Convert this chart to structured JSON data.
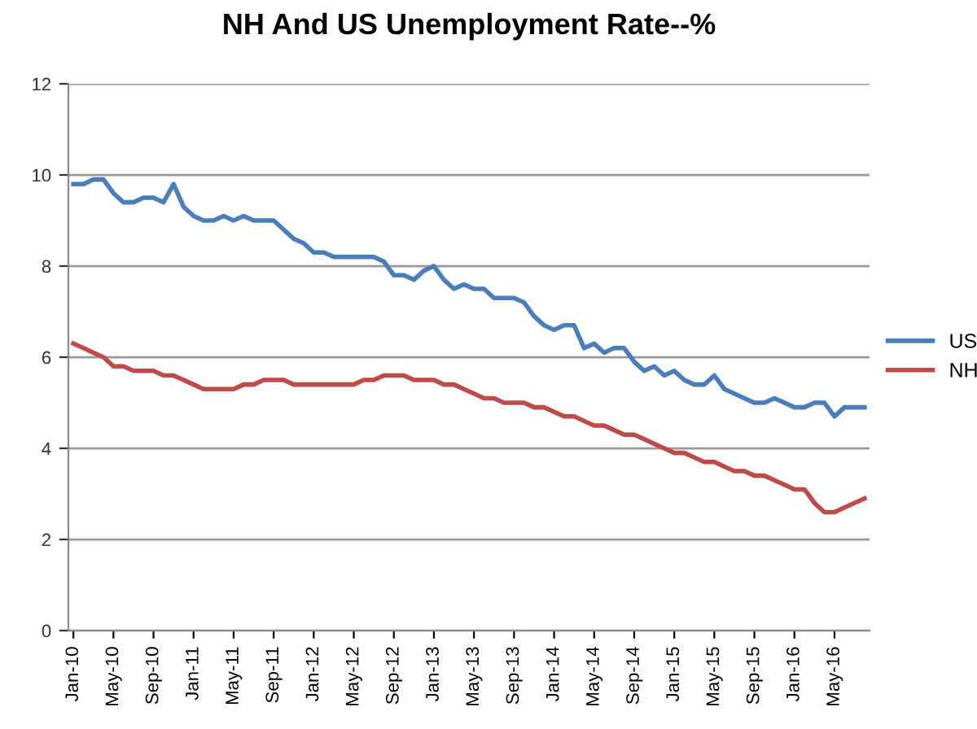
{
  "chart_data": {
    "type": "line",
    "title": "NH And US Unemployment Rate--%",
    "categories": [
      "Jan-10",
      null,
      null,
      null,
      "May-10",
      null,
      null,
      null,
      "Sep-10",
      null,
      null,
      null,
      "Jan-11",
      null,
      null,
      null,
      "May-11",
      null,
      null,
      null,
      "Sep-11",
      null,
      null,
      null,
      "Jan-12",
      null,
      null,
      null,
      "May-12",
      null,
      null,
      null,
      "Sep-12",
      null,
      null,
      null,
      "Jan-13",
      null,
      null,
      null,
      "May-13",
      null,
      null,
      null,
      "Sep-13",
      null,
      null,
      null,
      "Jan-14",
      null,
      null,
      null,
      "May-14",
      null,
      null,
      null,
      "Sep-14",
      null,
      null,
      null,
      "Jan-15",
      null,
      null,
      null,
      "May-15",
      null,
      null,
      null,
      "Sep-15",
      null,
      null,
      null,
      "Jan-16",
      null,
      null,
      null,
      "May-16",
      null,
      null,
      null
    ],
    "series": [
      {
        "name": "US",
        "color": "#4a7ebb",
        "values": [
          9.8,
          9.8,
          9.9,
          9.9,
          9.6,
          9.4,
          9.4,
          9.5,
          9.5,
          9.4,
          9.8,
          9.3,
          9.1,
          9.0,
          9.0,
          9.1,
          9.0,
          9.1,
          9.0,
          9.0,
          9.0,
          8.8,
          8.6,
          8.5,
          8.3,
          8.3,
          8.2,
          8.2,
          8.2,
          8.2,
          8.2,
          8.1,
          7.8,
          7.8,
          7.7,
          7.9,
          8.0,
          7.7,
          7.5,
          7.6,
          7.5,
          7.5,
          7.3,
          7.3,
          7.3,
          7.2,
          6.9,
          6.7,
          6.6,
          6.7,
          6.7,
          6.2,
          6.3,
          6.1,
          6.2,
          6.2,
          5.9,
          5.7,
          5.8,
          5.6,
          5.7,
          5.5,
          5.4,
          5.4,
          5.6,
          5.3,
          5.2,
          5.1,
          5.0,
          5.0,
          5.1,
          5.0,
          4.9,
          4.9,
          5.0,
          5.0,
          4.7,
          4.9,
          4.9,
          4.9
        ]
      },
      {
        "name": "NH",
        "color": "#be4b48",
        "values": [
          6.3,
          6.2,
          6.1,
          6.0,
          5.8,
          5.8,
          5.7,
          5.7,
          5.7,
          5.6,
          5.6,
          5.5,
          5.4,
          5.3,
          5.3,
          5.3,
          5.3,
          5.4,
          5.4,
          5.5,
          5.5,
          5.5,
          5.4,
          5.4,
          5.4,
          5.4,
          5.4,
          5.4,
          5.4,
          5.5,
          5.5,
          5.6,
          5.6,
          5.6,
          5.5,
          5.5,
          5.5,
          5.4,
          5.4,
          5.3,
          5.2,
          5.1,
          5.1,
          5.0,
          5.0,
          5.0,
          4.9,
          4.9,
          4.8,
          4.7,
          4.7,
          4.6,
          4.5,
          4.5,
          4.4,
          4.3,
          4.3,
          4.2,
          4.1,
          4.0,
          3.9,
          3.9,
          3.8,
          3.7,
          3.7,
          3.6,
          3.5,
          3.5,
          3.4,
          3.4,
          3.3,
          3.2,
          3.1,
          3.1,
          2.8,
          2.6,
          2.6,
          2.7,
          2.8,
          2.9
        ]
      }
    ],
    "ylim": [
      0,
      12
    ],
    "yticks": [
      0,
      2,
      4,
      6,
      8,
      10,
      12
    ],
    "grid": "y",
    "legend": "right",
    "marker": "none",
    "line_style": "solid"
  }
}
